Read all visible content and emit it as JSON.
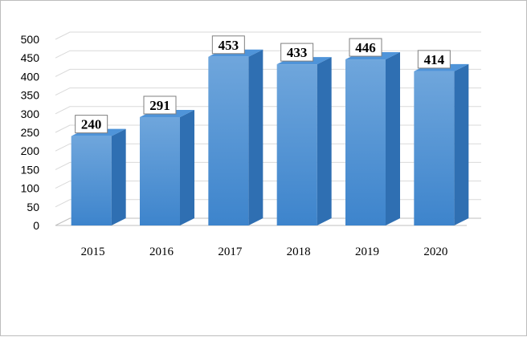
{
  "chart_data": {
    "type": "bar",
    "style": "3d-column",
    "categories": [
      "2015",
      "2016",
      "2017",
      "2018",
      "2019",
      "2020"
    ],
    "values": [
      240,
      291,
      453,
      433,
      446,
      414
    ],
    "title": "",
    "xlabel": "",
    "ylabel": "",
    "ylim": [
      0,
      500
    ],
    "yticks": [
      0,
      50,
      100,
      150,
      200,
      250,
      300,
      350,
      400,
      450,
      500
    ],
    "grid": true,
    "legend": "none",
    "data_labels": true
  },
  "colors": {
    "bar_front_top": "#6fa6dc",
    "bar_front_bottom": "#3d84cc",
    "bar_side": "#2f6fb2",
    "bar_top": "#4f94d9",
    "grid": "#d9d9d9",
    "axis": "#bfbfbf",
    "label_box_border": "#7f7f7f"
  }
}
